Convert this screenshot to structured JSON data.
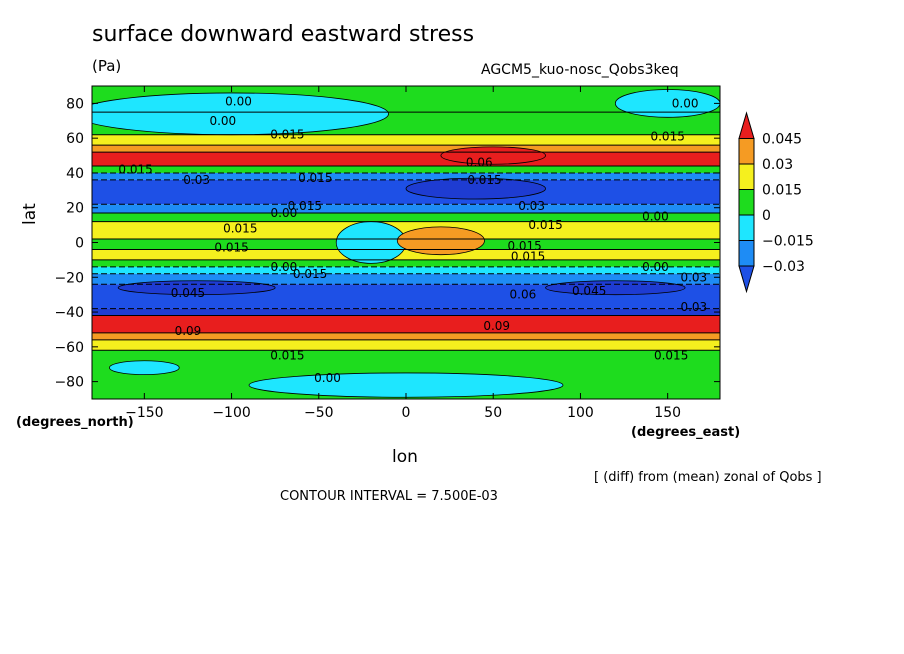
{
  "header": {
    "title": "surface downward eastward stress",
    "units": "(Pa)",
    "subtitle": "AGCM5_kuo-nosc_Qobs3keq"
  },
  "footer": {
    "diff_note": "[ (diff) from (mean) zonal of Qobs ]",
    "contour_interval": "CONTOUR INTERVAL = 7.500E-03"
  },
  "chart_data": {
    "type": "heatmap",
    "xlabel": "lon",
    "ylabel": "lat",
    "x_units_label": "(degrees_east)",
    "y_units_label": "(degrees_north)",
    "xlim": [
      -180,
      180
    ],
    "ylim": [
      -90,
      90
    ],
    "x_ticks": [
      -150,
      -100,
      -50,
      0,
      50,
      100,
      150
    ],
    "x_tick_labels": [
      "−150",
      "−100",
      "−50",
      "0",
      "50",
      "100",
      "150"
    ],
    "y_ticks": [
      80,
      60,
      40,
      20,
      0,
      -20,
      -40,
      -60,
      -80
    ],
    "y_tick_labels": [
      "80",
      "60",
      "40",
      "20",
      "0",
      "−20",
      "−40",
      "−60",
      "−80"
    ],
    "colorbar": {
      "levels": [
        0.045,
        0.03,
        0.015,
        0,
        -0.015,
        -0.03
      ],
      "labels": [
        "0.045",
        "0.03",
        "0.015",
        "0",
        "−0.015",
        "−0.03"
      ],
      "colors": [
        "#e81e1e",
        "#f59b23",
        "#f5f01e",
        "#1edc1e",
        "#1ee6ff",
        "#1e8cf5",
        "#1e50e6"
      ]
    },
    "colors": {
      "lt_neg045": "#1e3cd2",
      "neg045_neg03": "#1e50e6",
      "neg03_neg015": "#1e8cf5",
      "neg015_0": "#1ee6ff",
      "0_015": "#1edc1e",
      "015_03": "#f5f01e",
      "03_045": "#f59b23",
      "gt_045": "#e81e1e"
    },
    "bands": [
      {
        "lat_top": 90,
        "lat_bottom": 75,
        "value_class": "0_015"
      },
      {
        "lat_top": 75,
        "lat_bottom": 62,
        "value_class": "0_015"
      },
      {
        "lat_top": 62,
        "lat_bottom": 56,
        "value_class": "015_03"
      },
      {
        "lat_top": 56,
        "lat_bottom": 52,
        "value_class": "03_045"
      },
      {
        "lat_top": 52,
        "lat_bottom": 44,
        "value_class": "gt_045"
      },
      {
        "lat_top": 44,
        "lat_bottom": 40,
        "value_class": "0_015"
      },
      {
        "lat_top": 40,
        "lat_bottom": 36,
        "value_class": "neg03_neg015"
      },
      {
        "lat_top": 36,
        "lat_bottom": 22,
        "value_class": "neg045_neg03"
      },
      {
        "lat_top": 22,
        "lat_bottom": 17,
        "value_class": "neg03_neg015"
      },
      {
        "lat_top": 17,
        "lat_bottom": 12,
        "value_class": "0_015"
      },
      {
        "lat_top": 12,
        "lat_bottom": 2,
        "value_class": "015_03"
      },
      {
        "lat_top": 2,
        "lat_bottom": -4,
        "value_class": "0_015"
      },
      {
        "lat_top": -4,
        "lat_bottom": -10,
        "value_class": "015_03"
      },
      {
        "lat_top": -10,
        "lat_bottom": -14,
        "value_class": "0_015"
      },
      {
        "lat_top": -14,
        "lat_bottom": -18,
        "value_class": "neg015_0"
      },
      {
        "lat_top": -18,
        "lat_bottom": -24,
        "value_class": "neg03_neg015"
      },
      {
        "lat_top": -24,
        "lat_bottom": -38,
        "value_class": "neg045_neg03"
      },
      {
        "lat_top": -38,
        "lat_bottom": -42,
        "value_class": "lt_neg045"
      },
      {
        "lat_top": -42,
        "lat_bottom": -52,
        "value_class": "gt_045"
      },
      {
        "lat_top": -52,
        "lat_bottom": -56,
        "value_class": "03_045"
      },
      {
        "lat_top": -56,
        "lat_bottom": -62,
        "value_class": "015_03"
      },
      {
        "lat_top": -62,
        "lat_bottom": -90,
        "value_class": "0_015"
      }
    ],
    "patches": [
      {
        "lon_center": -100,
        "lat_center": 74,
        "lon_radius": 90,
        "lat_radius": 12,
        "value_class": "neg015_0"
      },
      {
        "lon_center": 150,
        "lat_center": 80,
        "lon_radius": 30,
        "lat_radius": 8,
        "value_class": "neg015_0"
      },
      {
        "lon_center": 0,
        "lat_center": -82,
        "lon_radius": 90,
        "lat_radius": 7,
        "value_class": "neg015_0"
      },
      {
        "lon_center": -150,
        "lat_center": -72,
        "lon_radius": 20,
        "lat_radius": 4,
        "value_class": "neg015_0"
      },
      {
        "lon_center": -20,
        "lat_center": 0,
        "lon_radius": 20,
        "lat_radius": 12,
        "value_class": "neg015_0"
      },
      {
        "lon_center": 20,
        "lat_center": 1,
        "lon_radius": 25,
        "lat_radius": 8,
        "value_class": "03_045"
      },
      {
        "lon_center": 50,
        "lat_center": 50,
        "lon_radius": 30,
        "lat_radius": 5,
        "value_class": "gt_045"
      },
      {
        "lon_center": 40,
        "lat_center": 31,
        "lon_radius": 40,
        "lat_radius": 6,
        "value_class": "lt_neg045"
      },
      {
        "lon_center": -120,
        "lat_center": -26,
        "lon_radius": 45,
        "lat_radius": 4,
        "value_class": "lt_neg045"
      },
      {
        "lon_center": 120,
        "lat_center": -26,
        "lon_radius": 40,
        "lat_radius": 4,
        "value_class": "lt_neg045"
      }
    ],
    "contour_labels": [
      {
        "text": "0.00",
        "lon": -96,
        "lat": 81
      },
      {
        "text": "0.00",
        "lon": -105,
        "lat": 70
      },
      {
        "text": "0.00",
        "lon": 160,
        "lat": 80
      },
      {
        "text": "0.015",
        "lon": -68,
        "lat": 62
      },
      {
        "text": "0.015",
        "lon": 150,
        "lat": 61
      },
      {
        "text": "0.06",
        "lon": 42,
        "lat": 46
      },
      {
        "text": "0.015",
        "lon": -155,
        "lat": 42
      },
      {
        "text": "0.03",
        "lon": -120,
        "lat": 36
      },
      {
        "text": "0.015",
        "lon": -52,
        "lat": 37
      },
      {
        "text": "0.015",
        "lon": 45,
        "lat": 36
      },
      {
        "text": "0.03",
        "lon": 72,
        "lat": 21
      },
      {
        "text": "0.015",
        "lon": -58,
        "lat": 21
      },
      {
        "text": "0.00",
        "lon": -70,
        "lat": 17
      },
      {
        "text": "0.00",
        "lon": 143,
        "lat": 15
      },
      {
        "text": "0.015",
        "lon": -95,
        "lat": 8
      },
      {
        "text": "0.015",
        "lon": 80,
        "lat": 10
      },
      {
        "text": "0.015",
        "lon": -100,
        "lat": -3
      },
      {
        "text": "0.015",
        "lon": 68,
        "lat": -2
      },
      {
        "text": "0.015",
        "lon": 70,
        "lat": -8
      },
      {
        "text": "0.00",
        "lon": -70,
        "lat": -14
      },
      {
        "text": "0.00",
        "lon": 143,
        "lat": -14
      },
      {
        "text": "0.015",
        "lon": -55,
        "lat": -18
      },
      {
        "text": "0.03",
        "lon": 165,
        "lat": -20
      },
      {
        "text": "0.045",
        "lon": -125,
        "lat": -29
      },
      {
        "text": "0.045",
        "lon": 105,
        "lat": -28
      },
      {
        "text": "0.06",
        "lon": 67,
        "lat": -30
      },
      {
        "text": "0.03",
        "lon": 165,
        "lat": -37
      },
      {
        "text": "0.09",
        "lon": -125,
        "lat": -51
      },
      {
        "text": "0.09",
        "lon": 52,
        "lat": -48
      },
      {
        "text": "0.015",
        "lon": -68,
        "lat": -65
      },
      {
        "text": "0.015",
        "lon": 152,
        "lat": -65
      },
      {
        "text": "0.00",
        "lon": -45,
        "lat": -78
      }
    ]
  }
}
